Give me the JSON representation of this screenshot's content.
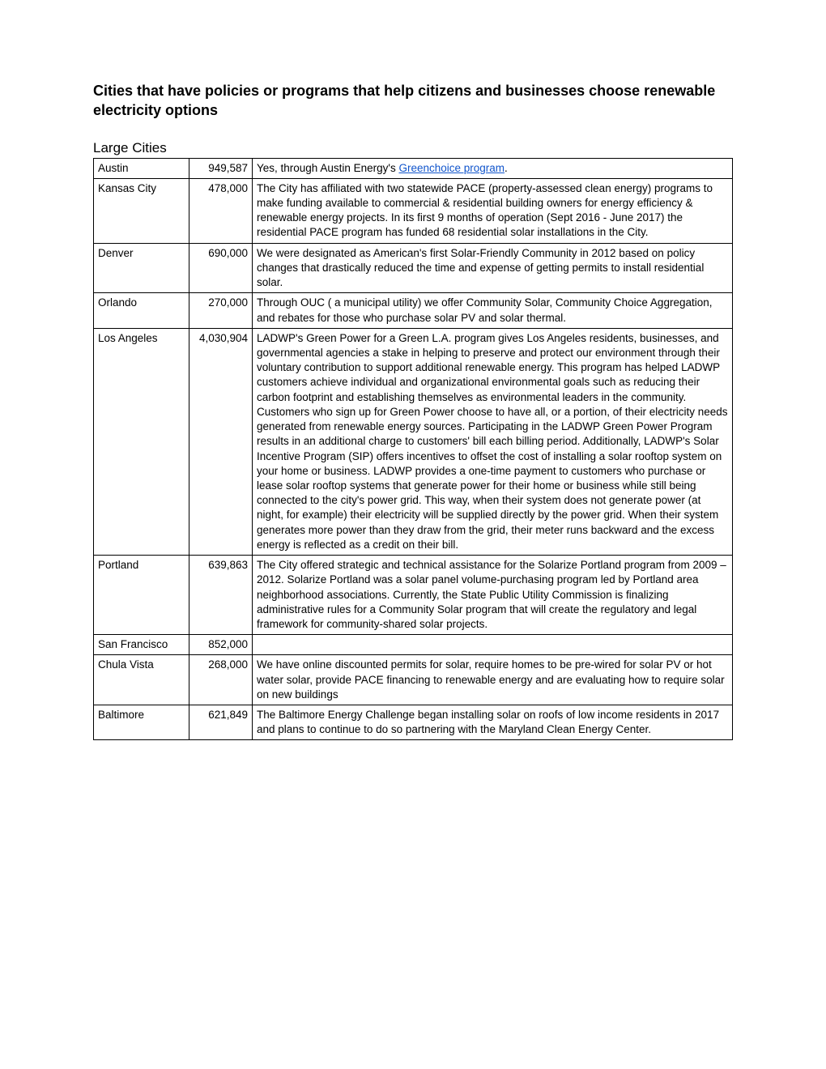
{
  "title": "Cities that have policies or programs that help citizens and businesses choose renewable electricity options",
  "section_heading": "Large Cities",
  "rows": [
    {
      "city": "Austin",
      "pop": "949,587",
      "desc_prefix": "Yes, through Austin Energy's ",
      "link_text": "Greenchoice program",
      "desc_suffix": "."
    },
    {
      "city": "Kansas City",
      "pop": "478,000",
      "desc": "The City has affiliated with two statewide PACE (property-assessed clean energy) programs to make funding available to commercial & residential building owners for energy efficiency & renewable energy projects. In its first 9 months of operation (Sept 2016 - June 2017) the residential PACE program has funded 68 residential solar installations in the City."
    },
    {
      "city": "Denver",
      "pop": "690,000",
      "desc": "We were designated as American's first Solar-Friendly Community in 2012 based on policy changes that drastically reduced the time and expense of getting permits to install residential solar."
    },
    {
      "city": "Orlando",
      "pop": "270,000",
      "desc": "Through OUC ( a municipal utility) we offer Community Solar, Community Choice Aggregation, and rebates for those who purchase solar PV and solar thermal."
    },
    {
      "city": "Los Angeles",
      "pop": "4,030,904",
      "desc": "LADWP's Green Power for a Green L.A. program gives Los Angeles residents, businesses, and governmental agencies a stake in helping to preserve and protect our environment through their voluntary contribution to support additional renewable energy. This program has helped LADWP customers achieve individual and organizational environmental goals such as reducing their carbon footprint and establishing themselves as environmental leaders in the community. Customers who sign up for Green Power choose to have all, or a portion, of their electricity needs generated from renewable energy sources. Participating in the LADWP Green Power Program results in an additional charge to customers' bill each billing period. Additionally, LADWP's Solar Incentive Program (SIP) offers incentives to offset the cost of installing a solar rooftop system on your home or business. LADWP provides a one-time payment to customers who purchase or lease solar rooftop systems that generate power for their home or business while still being connected to the city's power grid. This way, when their system does not generate power (at night, for example) their electricity will be supplied directly by the power grid. When their system generates more power than they draw from the grid, their meter runs backward and the excess energy is reflected as a credit on their bill."
    },
    {
      "city": "Portland",
      "pop": "639,863",
      "desc": "The City offered strategic and technical assistance for the Solarize Portland program from 2009 – 2012. Solarize Portland was a solar panel volume-purchasing program led by Portland area neighborhood associations. Currently, the State Public Utility Commission is finalizing administrative rules for a Community Solar program that will create the regulatory and legal framework for community-shared solar projects."
    },
    {
      "city": "San Francisco",
      "pop": "852,000",
      "desc": ""
    },
    {
      "city": "Chula Vista",
      "pop": "268,000",
      "desc": "We have online discounted permits for solar, require homes to be pre-wired for solar PV or hot water solar, provide PACE financing to renewable energy and are evaluating how to require solar on new buildings"
    },
    {
      "city": "Baltimore",
      "pop": "621,849",
      "desc": "The Baltimore Energy Challenge began installing solar on roofs of low income residents in 2017 and plans to continue to do so partnering with the Maryland Clean Energy Center."
    }
  ]
}
